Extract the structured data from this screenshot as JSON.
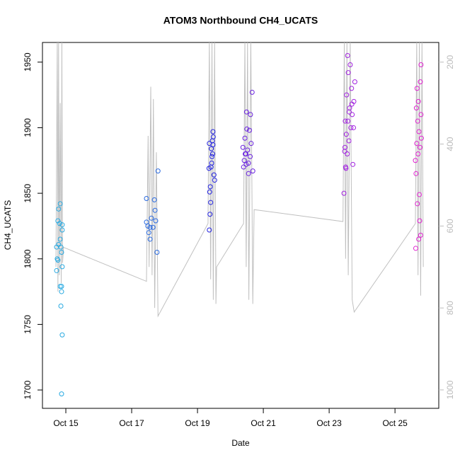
{
  "chart_data": {
    "type": "scatter",
    "title": "ATOM3 Northbound CH4_UCATS",
    "x_label": "Date",
    "y_label": "CH4_UCATS",
    "xlim": [
      14.29,
      26.33
    ],
    "ylim": [
      1686,
      1965
    ],
    "y2lim": [
      1045,
      152
    ],
    "xticks": [
      {
        "value": 15,
        "label": "Oct 15"
      },
      {
        "value": 17,
        "label": "Oct 17"
      },
      {
        "value": 19,
        "label": "Oct 19"
      },
      {
        "value": 21,
        "label": "Oct 21"
      },
      {
        "value": 23,
        "label": "Oct 23"
      },
      {
        "value": 25,
        "label": "Oct 25"
      }
    ],
    "yticks": [
      1700,
      1750,
      1800,
      1850,
      1900,
      1950
    ],
    "y2ticks": [
      200,
      400,
      600,
      800,
      1000
    ],
    "series": [
      {
        "type": "line",
        "axis": "y2",
        "color": "#c0c0c0",
        "x": [
          14.7,
          14.74,
          14.76,
          14.78,
          14.8,
          14.83,
          14.86,
          14.88,
          14.9,
          14.93,
          17.45,
          17.5,
          17.53,
          17.58,
          17.62,
          17.66,
          17.7,
          17.75,
          17.8,
          19.32,
          19.36,
          19.4,
          19.44,
          19.48,
          19.52,
          19.56,
          19.58,
          20.4,
          20.44,
          20.48,
          20.52,
          20.56,
          20.62,
          20.68,
          20.72,
          23.42,
          23.46,
          23.5,
          23.54,
          23.58,
          23.64,
          23.7,
          23.76,
          25.62,
          25.66,
          25.7,
          25.74,
          25.78,
          25.82,
          25.86
        ],
        "values": [
          700,
          150,
          760,
          150,
          720,
          300,
          740,
          150,
          690,
          652,
          735,
          380,
          700,
          260,
          720,
          290,
          800,
          420,
          820,
          594,
          150,
          730,
          150,
          780,
          150,
          790,
          700,
          594,
          150,
          700,
          150,
          780,
          150,
          790,
          560,
          589,
          150,
          680,
          150,
          720,
          150,
          780,
          810,
          594,
          150,
          720,
          150,
          770,
          150,
          700
        ]
      },
      {
        "type": "scatter",
        "color": "#27a9e1",
        "x": [
          14.72,
          14.72,
          14.74,
          14.76,
          14.78,
          14.81,
          14.83,
          14.85,
          14.85,
          14.83,
          14.87,
          14.87,
          14.89,
          14.89,
          14.87,
          14.83,
          14.89,
          14.89,
          14.87,
          14.76,
          14.78
        ],
        "values": [
          1791,
          1809,
          1800,
          1829,
          1838,
          1827,
          1842,
          1764,
          1809,
          1779,
          1779,
          1775,
          1826,
          1822,
          1805,
          1815,
          1794,
          1742,
          1697,
          1799,
          1811
        ]
      },
      {
        "type": "scatter",
        "color": "#2a6ae0",
        "x": [
          17.45,
          17.45,
          17.49,
          17.52,
          17.56,
          17.56,
          17.6,
          17.65,
          17.69,
          17.71,
          17.73,
          17.77,
          17.8
        ],
        "values": [
          1846,
          1828,
          1825,
          1820,
          1824,
          1815,
          1831,
          1824,
          1845,
          1837,
          1829,
          1805,
          1867
        ]
      },
      {
        "type": "scatter",
        "color": "#2222e0",
        "x": [
          19.36,
          19.38,
          19.4,
          19.37,
          19.39,
          19.35,
          19.41,
          19.43,
          19.44,
          19.46,
          19.42,
          19.47,
          19.36,
          19.45,
          19.48,
          19.47,
          19.52,
          19.5
        ],
        "values": [
          1822,
          1834,
          1843,
          1851,
          1855,
          1869,
          1870,
          1873,
          1878,
          1880,
          1884,
          1887,
          1888,
          1890,
          1893,
          1897,
          1860,
          1864
        ]
      },
      {
        "type": "scatter",
        "color": "#6a22e0",
        "x": [
          20.55,
          20.4,
          20.48,
          20.42,
          20.6,
          20.45,
          20.52,
          20.38,
          20.63,
          20.44,
          20.58,
          20.5,
          20.61,
          20.49,
          20.66,
          20.68,
          20.55,
          20.47
        ],
        "values": [
          1865,
          1870,
          1872,
          1875,
          1878,
          1880,
          1883,
          1885,
          1888,
          1892,
          1898,
          1899,
          1910,
          1912,
          1927,
          1867,
          1873,
          1880
        ]
      },
      {
        "type": "scatter",
        "color": "#a222e0",
        "x": [
          23.45,
          23.5,
          23.72,
          23.55,
          23.48,
          23.6,
          23.52,
          23.66,
          23.57,
          23.7,
          23.62,
          23.75,
          23.53,
          23.68,
          23.78,
          23.58,
          23.64,
          23.56,
          23.49,
          23.74,
          23.61,
          23.69,
          23.47,
          23.51
        ],
        "values": [
          1850,
          1870,
          1872,
          1880,
          1885,
          1890,
          1895,
          1900,
          1905,
          1910,
          1915,
          1920,
          1925,
          1930,
          1935,
          1942,
          1948,
          1955,
          1905,
          1900,
          1912,
          1918,
          1882,
          1869
        ]
      },
      {
        "type": "scatter",
        "color": "#e022d0",
        "x": [
          25.72,
          25.78,
          25.75,
          25.68,
          25.74,
          25.64,
          25.62,
          25.7,
          25.76,
          25.66,
          25.8,
          25.73,
          25.69,
          25.79,
          25.65,
          25.71,
          25.67,
          25.77,
          25.79,
          25.63
        ],
        "values": [
          1815,
          1818,
          1829,
          1842,
          1849,
          1865,
          1875,
          1880,
          1885,
          1888,
          1892,
          1897,
          1905,
          1910,
          1915,
          1920,
          1930,
          1935,
          1948,
          1808
        ]
      }
    ]
  }
}
